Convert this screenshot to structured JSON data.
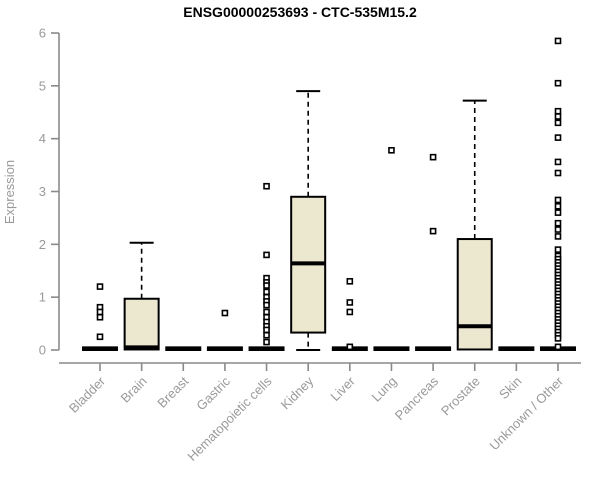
{
  "chart_data": {
    "type": "boxplot",
    "title": "ENSG00000253693 - CTC-535M15.2",
    "xlabel": "",
    "ylabel": "Expression",
    "ylim": [
      0,
      6
    ],
    "yticks": [
      0,
      1,
      2,
      3,
      4,
      5,
      6
    ],
    "grid": false,
    "legend": false,
    "box_fill_color": "#ece7cf",
    "box_border_color": "#000000",
    "axis_color": "#8a8a8a",
    "label_color": "#9a9a9a",
    "categories": [
      "Bladder",
      "Brain",
      "Breast",
      "Gastric",
      "Hematopoietic cells",
      "Kidney",
      "Liver",
      "Lung",
      "Pancreas",
      "Prostate",
      "Skin",
      "Unknown / Other"
    ],
    "boxes": [
      {
        "category": "Bladder",
        "low": 0,
        "q1": 0,
        "median": 0.02,
        "q3": 0.05,
        "high": 0.05,
        "outliers": [
          1.2,
          0.81,
          0.72,
          0.62,
          0.25
        ]
      },
      {
        "category": "Brain",
        "low": 0.01,
        "q1": 0.01,
        "median": 0.05,
        "q3": 0.97,
        "high": 2.03,
        "outliers": []
      },
      {
        "category": "Breast",
        "low": 0,
        "q1": 0,
        "median": 0.02,
        "q3": 0.05,
        "high": 0.05,
        "outliers": []
      },
      {
        "category": "Gastric",
        "low": 0,
        "q1": 0,
        "median": 0.02,
        "q3": 0.05,
        "high": 0.05,
        "outliers": [
          0.7
        ]
      },
      {
        "category": "Hematopoietic cells",
        "low": 0,
        "q1": 0,
        "median": 0.02,
        "q3": 0.05,
        "high": 0.05,
        "outliers": [
          3.1,
          1.8,
          1.36,
          1.28,
          1.22,
          1.1,
          1.0,
          0.92,
          0.85,
          0.72,
          0.62,
          0.53,
          0.45,
          0.38,
          0.28,
          0.15
        ]
      },
      {
        "category": "Kidney",
        "low": 0,
        "q1": 0.33,
        "median": 1.64,
        "q3": 2.9,
        "high": 4.9,
        "outliers": []
      },
      {
        "category": "Liver",
        "low": 0,
        "q1": 0,
        "median": 0.02,
        "q3": 0.05,
        "high": 0.05,
        "outliers": [
          1.3,
          0.9,
          0.72,
          0.06
        ]
      },
      {
        "category": "Lung",
        "low": 0,
        "q1": 0,
        "median": 0.02,
        "q3": 0.05,
        "high": 0.05,
        "outliers": [
          3.78
        ]
      },
      {
        "category": "Pancreas",
        "low": 0,
        "q1": 0,
        "median": 0.02,
        "q3": 0.05,
        "high": 0.05,
        "outliers": [
          3.65,
          2.25
        ]
      },
      {
        "category": "Prostate",
        "low": 0.01,
        "q1": 0.01,
        "median": 0.45,
        "q3": 2.1,
        "high": 4.72,
        "outliers": []
      },
      {
        "category": "Skin",
        "low": 0,
        "q1": 0,
        "median": 0.02,
        "q3": 0.05,
        "high": 0.05,
        "outliers": []
      },
      {
        "category": "Unknown / Other",
        "low": 0,
        "q1": 0,
        "median": 0.02,
        "q3": 0.05,
        "high": 0.05,
        "outliers": [
          5.85,
          5.05,
          4.52,
          4.42,
          4.3,
          4.02,
          3.56,
          3.35,
          2.84,
          2.72,
          2.6,
          2.4,
          2.28,
          2.15,
          1.9,
          1.78,
          1.72,
          1.66,
          1.6,
          1.54,
          1.48,
          1.42,
          1.36,
          1.3,
          1.24,
          1.18,
          1.12,
          1.06,
          1.0,
          0.94,
          0.88,
          0.82,
          0.76,
          0.7,
          0.64,
          0.58,
          0.52,
          0.46,
          0.4,
          0.34,
          0.28,
          0.22,
          0.06
        ]
      }
    ]
  }
}
